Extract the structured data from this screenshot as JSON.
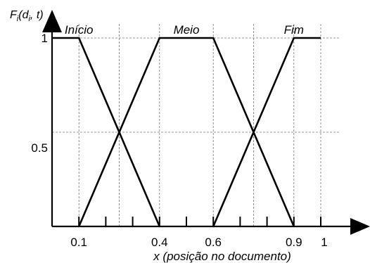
{
  "chart_data": {
    "type": "line",
    "ylabel_main": "F",
    "ylabel_sub": "i",
    "ylabel_args_open": "(d",
    "ylabel_args_sub": "i",
    "ylabel_args_close": ", t)",
    "xlabel": "x (posição no documento)",
    "xlim": [
      0,
      1.15
    ],
    "ylim": [
      0,
      1
    ],
    "x_tick_labels": [
      {
        "x": 0.1,
        "label": "0.1"
      },
      {
        "x": 0.4,
        "label": "0.4"
      },
      {
        "x": 0.6,
        "label": "0.6"
      },
      {
        "x": 0.9,
        "label": "0.9"
      },
      {
        "x": 1.0,
        "label": "1"
      }
    ],
    "x_minor_ticks": [
      0.2,
      0.3,
      0.5,
      0.7,
      0.8
    ],
    "y_tick_labels": [
      {
        "y": 1.0,
        "label": "1"
      },
      {
        "y": 0.5,
        "label": "0.5"
      }
    ],
    "vertical_guides": [
      0.1,
      0.25,
      0.4,
      0.6,
      0.75,
      0.9,
      1.0
    ],
    "horizontal_guides": [
      1.0,
      0.5
    ],
    "series": [
      {
        "name": "Início",
        "x": [
          0,
          0.1,
          0.4
        ],
        "y": [
          1,
          1,
          0
        ],
        "label_x": 0.1
      },
      {
        "name": "Meio",
        "x": [
          0.1,
          0.4,
          0.6,
          0.9
        ],
        "y": [
          0,
          1,
          1,
          0
        ],
        "label_x": 0.5
      },
      {
        "name": "Fim",
        "x": [
          0.6,
          0.9,
          1.0
        ],
        "y": [
          0,
          1,
          1
        ],
        "label_x": 0.9
      }
    ]
  }
}
